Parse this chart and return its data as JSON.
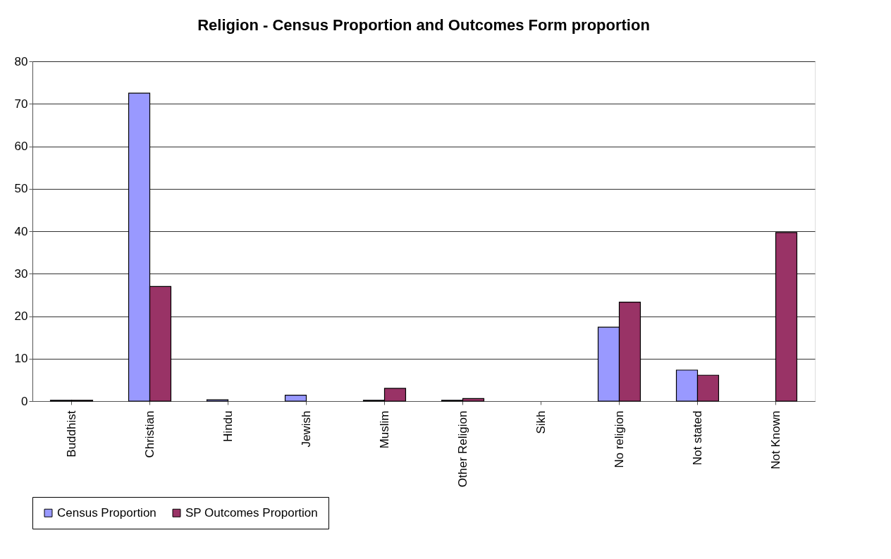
{
  "chart_data": {
    "type": "bar",
    "title": "Religion - Census Proportion and Outcomes Form proportion",
    "categories": [
      "Buddhist",
      "Christian",
      "Hindu",
      "Jewish",
      "Muslim",
      "Other Religion",
      "Sikh",
      "No religion",
      "Not stated",
      "Not Known"
    ],
    "series": [
      {
        "name": "Census Proportion",
        "color": "#9999ff",
        "values": [
          0.2,
          72.5,
          0.3,
          1.4,
          0.2,
          0.2,
          null,
          17.4,
          7.3,
          null
        ]
      },
      {
        "name": "SP Outcomes Proportion",
        "color": "#993366",
        "values": [
          0.2,
          27,
          null,
          null,
          3,
          0.6,
          null,
          23.3,
          6.1,
          39.7
        ]
      }
    ],
    "ylim": [
      0,
      80
    ],
    "yticks": [
      0,
      10,
      20,
      30,
      40,
      50,
      60,
      70,
      80
    ],
    "grid": "y",
    "legend": "bottom left"
  }
}
